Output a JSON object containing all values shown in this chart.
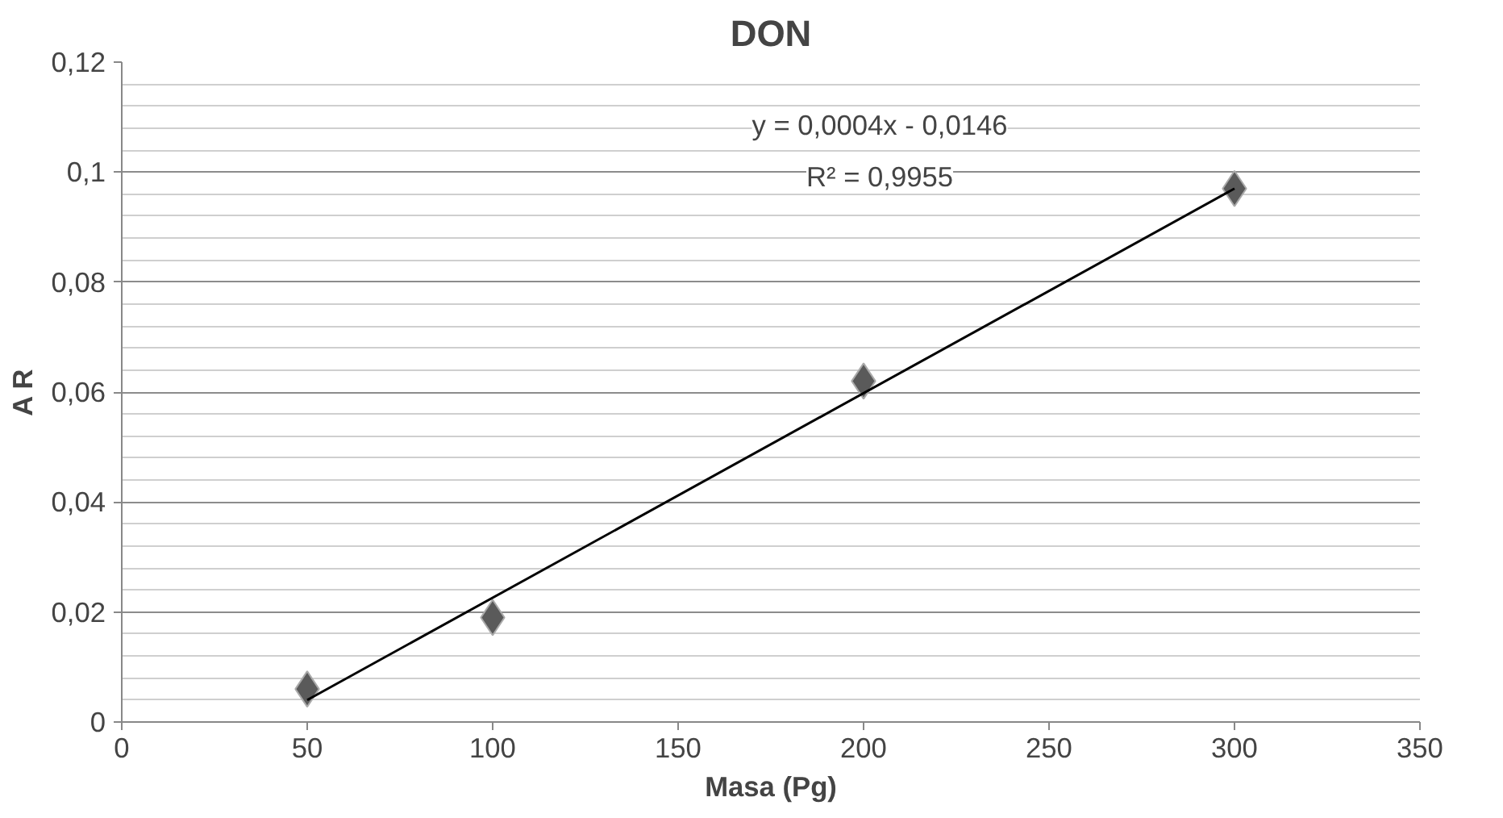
{
  "chart_data": {
    "type": "scatter",
    "title": "DON",
    "xlabel": "Masa (Pg)",
    "ylabel": "A R",
    "series": [
      {
        "color": "#5a5a5a",
        "marker": "diamond",
        "x": [
          50,
          100,
          200,
          300
        ],
        "values": [
          0.006,
          0.019,
          0.062,
          0.097
        ]
      },
      {
        "type": "line",
        "color": "#000000",
        "marker": "none",
        "line_style": "solid",
        "x": [
          50,
          300
        ],
        "values": [
          0.004,
          0.097
        ]
      }
    ],
    "annotations": [
      "y = 0,0004x - 0,0146",
      "R² = 0,9955"
    ],
    "xlim": [
      0,
      350
    ],
    "xticks": [
      0,
      50,
      100,
      150,
      200,
      250,
      300,
      350
    ],
    "ylim": [
      0,
      0.12
    ],
    "yticks": [
      {
        "value": 0,
        "label": "0"
      },
      {
        "value": 0.02,
        "label": "0,02"
      },
      {
        "value": 0.04,
        "label": "0,04"
      },
      {
        "value": 0.06,
        "label": "0,06"
      },
      {
        "value": 0.08,
        "label": "0,08"
      },
      {
        "value": 0.1,
        "label": "0,1"
      },
      {
        "value": 0.12,
        "label": "0,12"
      }
    ],
    "grid": "y"
  }
}
